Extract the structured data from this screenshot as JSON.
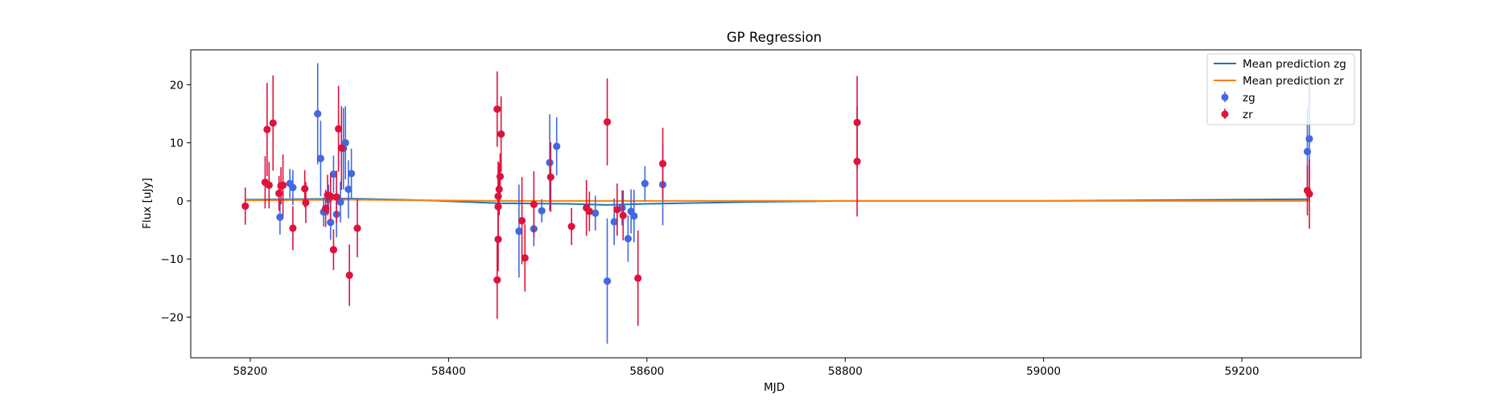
{
  "chart_data": {
    "type": "scatter",
    "title": "GP Regression",
    "xlabel": "MJD",
    "ylabel": "Flux [uJy]",
    "xlim": [
      58140,
      59320
    ],
    "ylim": [
      -27,
      26
    ],
    "xticks": [
      58200,
      58400,
      58600,
      58800,
      59000,
      59200
    ],
    "yticks": [
      -20,
      -10,
      0,
      10,
      20
    ],
    "grid": false,
    "legend_position": "top-right",
    "lines": [
      {
        "name": "Mean prediction zg",
        "color": "#1f77b4",
        "x": [
          58195,
          58300,
          58380,
          58450,
          58520,
          58560,
          58600,
          58700,
          58800,
          59000,
          59268
        ],
        "y": [
          0.2,
          0.4,
          0.1,
          -0.4,
          -0.5,
          -0.7,
          -0.5,
          -0.2,
          0.0,
          0.0,
          0.3
        ]
      },
      {
        "name": "Mean prediction zr",
        "color": "#ff7f0e",
        "x": [
          58195,
          58300,
          58450,
          58600,
          58800,
          59000,
          59268
        ],
        "y": [
          0.1,
          0.2,
          0.0,
          0.0,
          0.0,
          0.0,
          0.0
        ]
      }
    ],
    "series": [
      {
        "name": "zg",
        "color": "#4169e1",
        "points": [
          {
            "x": 58230,
            "y": -2.8,
            "err": 3.0
          },
          {
            "x": 58240,
            "y": 3.0,
            "err": 2.5
          },
          {
            "x": 58243,
            "y": 2.3,
            "err": 3.0
          },
          {
            "x": 58268,
            "y": 15.0,
            "err": 8.7
          },
          {
            "x": 58271,
            "y": 7.3,
            "err": 6.5
          },
          {
            "x": 58274,
            "y": -1.9,
            "err": 2.5
          },
          {
            "x": 58279,
            "y": 0.3,
            "err": 2.5
          },
          {
            "x": 58281,
            "y": -3.7,
            "err": 3.0
          },
          {
            "x": 58284,
            "y": 4.6,
            "err": 3.2
          },
          {
            "x": 58287,
            "y": -2.3,
            "err": 4.0
          },
          {
            "x": 58291,
            "y": -0.2,
            "err": 3.5
          },
          {
            "x": 58294,
            "y": 9.0,
            "err": 7.0
          },
          {
            "x": 58296,
            "y": 10.0,
            "err": 6.3
          },
          {
            "x": 58299,
            "y": 2.0,
            "err": 5.0
          },
          {
            "x": 58302,
            "y": 4.7,
            "err": 4.3
          },
          {
            "x": 58471,
            "y": -5.2,
            "err": 8.0
          },
          {
            "x": 58486,
            "y": -4.8,
            "err": 3.0
          },
          {
            "x": 58494,
            "y": -1.7,
            "err": 2.0
          },
          {
            "x": 58502,
            "y": 6.6,
            "err": 8.3
          },
          {
            "x": 58509,
            "y": 9.4,
            "err": 5.0
          },
          {
            "x": 58548,
            "y": -2.1,
            "err": 3.0
          },
          {
            "x": 58560,
            "y": -13.8,
            "err": 10.8
          },
          {
            "x": 58567,
            "y": -3.6,
            "err": 4.0
          },
          {
            "x": 58575,
            "y": -1.2,
            "err": 3.0
          },
          {
            "x": 58581,
            "y": -6.5,
            "err": 4.0
          },
          {
            "x": 58584,
            "y": -1.8,
            "err": 3.8
          },
          {
            "x": 58587,
            "y": -2.6,
            "err": 4.5
          },
          {
            "x": 58598,
            "y": 3.0,
            "err": 3.0
          },
          {
            "x": 58616,
            "y": 2.8,
            "err": 7.0
          },
          {
            "x": 59266,
            "y": 8.5,
            "err": 7.5
          },
          {
            "x": 59268,
            "y": 10.7,
            "err": 10.5
          }
        ]
      },
      {
        "name": "zr",
        "color": "#dc143c",
        "points": [
          {
            "x": 58195,
            "y": -0.9,
            "err": 3.2
          },
          {
            "x": 58215,
            "y": 3.2,
            "err": 4.5
          },
          {
            "x": 58217,
            "y": 12.3,
            "err": 8.0
          },
          {
            "x": 58219,
            "y": 2.7,
            "err": 4.0
          },
          {
            "x": 58223,
            "y": 13.4,
            "err": 8.2
          },
          {
            "x": 58229,
            "y": 1.3,
            "err": 3.0
          },
          {
            "x": 58231,
            "y": 2.6,
            "err": 3.2
          },
          {
            "x": 58233,
            "y": 2.7,
            "err": 5.3
          },
          {
            "x": 58243,
            "y": -4.7,
            "err": 3.8
          },
          {
            "x": 58255,
            "y": 2.1,
            "err": 3.2
          },
          {
            "x": 58256,
            "y": -0.3,
            "err": 3.5
          },
          {
            "x": 58276,
            "y": -1.3,
            "err": 3.2
          },
          {
            "x": 58278,
            "y": 1.0,
            "err": 3.5
          },
          {
            "x": 58281,
            "y": 0.8,
            "err": 4.0
          },
          {
            "x": 58284,
            "y": -8.4,
            "err": 3.5
          },
          {
            "x": 58287,
            "y": 0.7,
            "err": 4.5
          },
          {
            "x": 58289,
            "y": 12.4,
            "err": 7.4
          },
          {
            "x": 58292,
            "y": 9.1,
            "err": 7.2
          },
          {
            "x": 58300,
            "y": -12.8,
            "err": 5.3
          },
          {
            "x": 58308,
            "y": -4.7,
            "err": 5.0
          },
          {
            "x": 58449,
            "y": 15.8,
            "err": 6.5
          },
          {
            "x": 58449,
            "y": -13.6,
            "err": 6.7
          },
          {
            "x": 58450,
            "y": -6.6,
            "err": 5.5
          },
          {
            "x": 58450,
            "y": -1.0,
            "err": 5.0
          },
          {
            "x": 58450,
            "y": 0.8,
            "err": 6.0
          },
          {
            "x": 58451,
            "y": 2.0,
            "err": 4.5
          },
          {
            "x": 58452,
            "y": 4.2,
            "err": 4.0
          },
          {
            "x": 58453,
            "y": 11.5,
            "err": 6.5
          },
          {
            "x": 58474,
            "y": -3.4,
            "err": 7.5
          },
          {
            "x": 58477,
            "y": -9.8,
            "err": 5.8
          },
          {
            "x": 58486,
            "y": -0.6,
            "err": 5.7
          },
          {
            "x": 58503,
            "y": 4.1,
            "err": 6.0
          },
          {
            "x": 58524,
            "y": -4.4,
            "err": 3.2
          },
          {
            "x": 58539,
            "y": -1.2,
            "err": 4.8
          },
          {
            "x": 58542,
            "y": -1.8,
            "err": 3.4
          },
          {
            "x": 58560,
            "y": 13.6,
            "err": 7.5
          },
          {
            "x": 58570,
            "y": -1.5,
            "err": 4.5
          },
          {
            "x": 58576,
            "y": -2.5,
            "err": 4.3
          },
          {
            "x": 58591,
            "y": -13.3,
            "err": 8.2
          },
          {
            "x": 58616,
            "y": 6.4,
            "err": 6.2
          },
          {
            "x": 58812,
            "y": 13.5,
            "err": 8.0
          },
          {
            "x": 58812,
            "y": 6.8,
            "err": 9.5
          },
          {
            "x": 59266,
            "y": 1.8,
            "err": 4.3
          },
          {
            "x": 59268,
            "y": 1.2,
            "err": 6.0
          }
        ]
      }
    ]
  }
}
